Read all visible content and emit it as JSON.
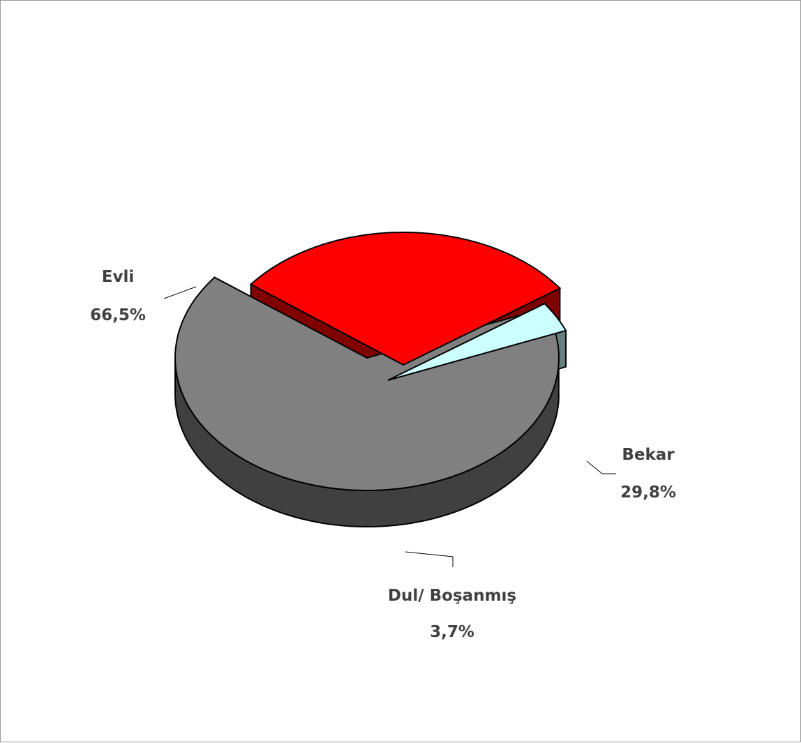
{
  "chart_data": {
    "type": "pie",
    "title": "",
    "slices": [
      {
        "label": "Evli",
        "value": 66.5,
        "value_label": "66,5%",
        "top_color": "#808080",
        "side_color": "#404040"
      },
      {
        "label": "Bekar",
        "value": 29.8,
        "value_label": "29,8%",
        "top_color": "#ff0000",
        "side_color": "#800000"
      },
      {
        "label": "Dul/ Boşanmış",
        "value": 3.7,
        "value_label": "3,7%",
        "top_color": "#ccffff",
        "side_color": "#668080"
      }
    ],
    "legend": "none",
    "exploded": true,
    "three_d": true
  }
}
